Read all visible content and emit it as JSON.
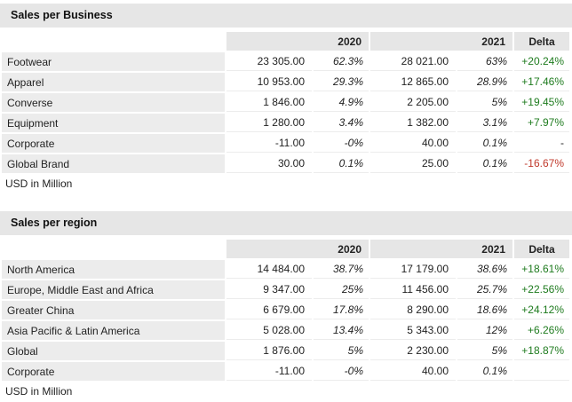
{
  "business": {
    "title": "Sales per Business",
    "header": {
      "y1": "2020",
      "y2": "2021",
      "delta": "Delta"
    },
    "rows": [
      {
        "label": "Footwear",
        "v2020": "23 305.00",
        "p2020": "62.3%",
        "v2021": "28 021.00",
        "p2021": "63%",
        "delta": "+20.24%",
        "trend": "pos"
      },
      {
        "label": "Apparel",
        "v2020": "10 953.00",
        "p2020": "29.3%",
        "v2021": "12 865.00",
        "p2021": "28.9%",
        "delta": "+17.46%",
        "trend": "pos"
      },
      {
        "label": "Converse",
        "v2020": "1 846.00",
        "p2020": "4.9%",
        "v2021": "2 205.00",
        "p2021": "5%",
        "delta": "+19.45%",
        "trend": "pos"
      },
      {
        "label": "Equipment",
        "v2020": "1 280.00",
        "p2020": "3.4%",
        "v2021": "1 382.00",
        "p2021": "3.1%",
        "delta": "+7.97%",
        "trend": "pos"
      },
      {
        "label": "Corporate",
        "v2020": "-11.00",
        "p2020": "-0%",
        "v2021": "40.00",
        "p2021": "0.1%",
        "delta": "-",
        "trend": "neu"
      },
      {
        "label": "Global Brand",
        "v2020": "30.00",
        "p2020": "0.1%",
        "v2021": "25.00",
        "p2021": "0.1%",
        "delta": "-16.67%",
        "trend": "neg"
      }
    ],
    "footnote": "USD in Million"
  },
  "region": {
    "title": "Sales per region",
    "header": {
      "y1": "2020",
      "y2": "2021",
      "delta": "Delta"
    },
    "rows": [
      {
        "label": "North America",
        "v2020": "14 484.00",
        "p2020": "38.7%",
        "v2021": "17 179.00",
        "p2021": "38.6%",
        "delta": "+18.61%",
        "trend": "pos"
      },
      {
        "label": "Europe, Middle East and Africa",
        "v2020": "9 347.00",
        "p2020": "25%",
        "v2021": "11 456.00",
        "p2021": "25.7%",
        "delta": "+22.56%",
        "trend": "pos"
      },
      {
        "label": "Greater China",
        "v2020": "6 679.00",
        "p2020": "17.8%",
        "v2021": "8 290.00",
        "p2021": "18.6%",
        "delta": "+24.12%",
        "trend": "pos"
      },
      {
        "label": "Asia Pacific & Latin America",
        "v2020": "5 028.00",
        "p2020": "13.4%",
        "v2021": "5 343.00",
        "p2021": "12%",
        "delta": "+6.26%",
        "trend": "pos"
      },
      {
        "label": "Global",
        "v2020": "1 876.00",
        "p2020": "5%",
        "v2021": "2 230.00",
        "p2021": "5%",
        "delta": "+18.87%",
        "trend": "pos"
      },
      {
        "label": "Corporate",
        "v2020": "-11.00",
        "p2020": "-0%",
        "v2021": "40.00",
        "p2021": "0.1%",
        "delta": "",
        "trend": "neu"
      }
    ],
    "footnote": "USD in Million"
  },
  "colors": {
    "positive": "#1e7b1e",
    "negative": "#c0392b",
    "header_bg": "#e6e6e6"
  }
}
